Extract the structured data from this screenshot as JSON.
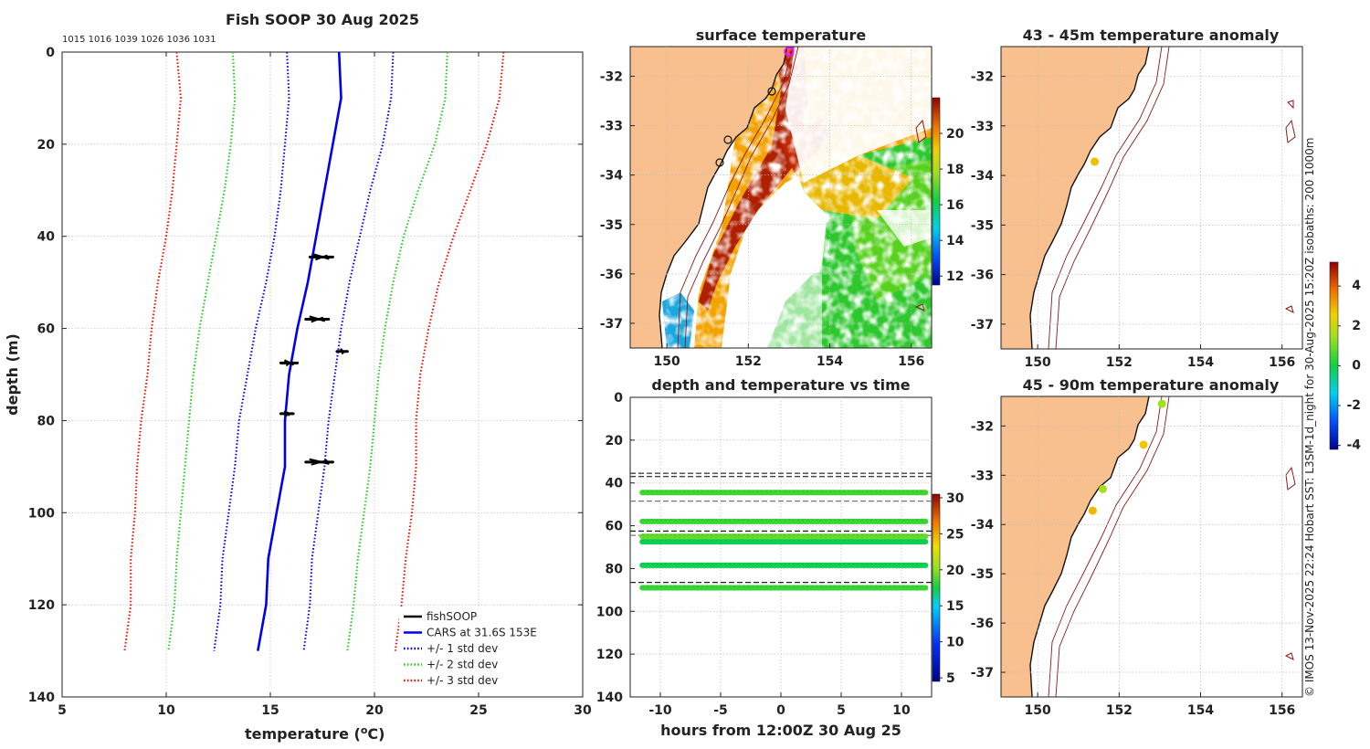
{
  "chart_data": [
    {
      "type": "line",
      "title": "Fish SOOP 30 Aug 2025",
      "xlabel": "temperature (",
      "xlabel_sup": "o",
      "xlabel_end": "C)",
      "ylabel": "depth (m)",
      "xlim": [
        5,
        30
      ],
      "ylim": [
        140,
        0
      ],
      "xticks": [
        "5",
        "10",
        "15",
        "20",
        "25",
        "30"
      ],
      "yticks": [
        "0",
        "20",
        "40",
        "60",
        "80",
        "100",
        "120",
        "140"
      ],
      "top_annotation": "1015 1016 1039 1026 1036 1031",
      "legend": [
        {
          "label": "fishSOOP",
          "color": "#000000",
          "style": "solid"
        },
        {
          "label": "CARS at 31.6S 153E",
          "color": "#0000ee",
          "style": "solid"
        },
        {
          "label": "+/- 1 std dev",
          "color": "#0000ee",
          "style": "dotted"
        },
        {
          "label": "+/- 2 std dev",
          "color": "#22cc22",
          "style": "dotted"
        },
        {
          "label": "+/- 3 std dev",
          "color": "#ee1100",
          "style": "dotted"
        }
      ],
      "depths": [
        0,
        10,
        20,
        30,
        40,
        50,
        60,
        70,
        80,
        90,
        100,
        110,
        120,
        130
      ],
      "cars_mean": [
        18.3,
        18.4,
        18.0,
        17.6,
        17.2,
        16.8,
        16.3,
        15.9,
        15.7,
        15.7,
        15.3,
        14.9,
        14.8,
        14.4
      ],
      "std1_low": [
        15.8,
        15.9,
        15.7,
        15.5,
        15.2,
        14.8,
        14.3,
        13.9,
        13.5,
        13.3,
        13.0,
        12.7,
        12.6,
        12.3
      ],
      "std1_high": [
        20.9,
        20.8,
        20.4,
        19.8,
        19.3,
        18.8,
        18.4,
        18.1,
        17.8,
        17.6,
        17.3,
        17.0,
        16.9,
        16.6
      ],
      "std2_low": [
        13.2,
        13.3,
        13.1,
        12.8,
        12.4,
        12.0,
        11.6,
        11.3,
        11.1,
        10.9,
        10.7,
        10.5,
        10.4,
        10.1
      ],
      "std2_high": [
        23.5,
        23.4,
        22.9,
        22.1,
        21.4,
        20.9,
        20.5,
        20.2,
        20.0,
        19.8,
        19.5,
        19.2,
        19.0,
        18.7
      ],
      "std3_low": [
        10.5,
        10.7,
        10.5,
        10.3,
        10.0,
        9.6,
        9.3,
        9.1,
        8.8,
        8.6,
        8.5,
        8.3,
        8.3,
        8.0
      ],
      "std3_high": [
        26.2,
        26.0,
        25.4,
        24.6,
        23.8,
        23.1,
        22.6,
        22.2,
        22.0,
        22.0,
        21.8,
        21.5,
        21.3,
        21.0
      ],
      "fishsoop_clusters": [
        {
          "depth": 44.5,
          "temp_min": 16.9,
          "temp_max": 18.0
        },
        {
          "depth": 58.0,
          "temp_min": 16.7,
          "temp_max": 17.8
        },
        {
          "depth": 65.0,
          "temp_min": 18.2,
          "temp_max": 18.7
        },
        {
          "depth": 67.5,
          "temp_min": 15.5,
          "temp_max": 16.3
        },
        {
          "depth": 78.5,
          "temp_min": 15.5,
          "temp_max": 16.1
        },
        {
          "depth": 89.0,
          "temp_min": 16.7,
          "temp_max": 18.0
        }
      ]
    },
    {
      "type": "heatmap",
      "title": "surface temperature",
      "xlim": [
        149.1,
        156.5
      ],
      "ylim": [
        -37.5,
        -31.4
      ],
      "xticks": [
        "150",
        "152",
        "154",
        "156"
      ],
      "yticks": [
        "-32",
        "-33",
        "-34",
        "-35",
        "-36",
        "-37"
      ],
      "colorbar": {
        "min": 11.5,
        "max": 22,
        "ticks": [
          "12",
          "14",
          "16",
          "18",
          "20"
        ]
      },
      "marker": {
        "lon": 153.0,
        "lat": -31.5
      }
    },
    {
      "type": "scatter",
      "title": "depth and temperature vs time",
      "xlabel": "hours from 12:00Z 30 Aug 25",
      "xlim": [
        -12.5,
        12.5
      ],
      "ylim": [
        140,
        0
      ],
      "xticks": [
        "-10",
        "-5",
        "0",
        "5",
        "10"
      ],
      "yticks": [
        "0",
        "20",
        "40",
        "60",
        "80",
        "100",
        "120",
        "140"
      ],
      "colorbar": {
        "min": 4.5,
        "max": 30.5,
        "ticks": [
          "5",
          "10",
          "15",
          "20",
          "25",
          "30"
        ]
      },
      "x_range": [
        -11.5,
        12.0
      ],
      "tracks": [
        {
          "depth": 44.5,
          "temp": 17.5
        },
        {
          "depth": 58.0,
          "temp": 17.3
        },
        {
          "depth": 65.0,
          "temp": 18.5
        },
        {
          "depth": 67.5,
          "temp": 15.9
        },
        {
          "depth": 78.5,
          "temp": 15.8
        },
        {
          "depth": 89.0,
          "temp": 17.3
        }
      ],
      "dashed_lines": [
        {
          "depth": 35.5,
          "color": "#444444"
        },
        {
          "depth": 37.0,
          "color": "#444444"
        },
        {
          "depth": 48.5,
          "color": "#777777"
        },
        {
          "depth": 62.5,
          "color": "#222222"
        },
        {
          "depth": 64.5,
          "color": "#777777"
        },
        {
          "depth": 86.5,
          "color": "#222222"
        }
      ]
    },
    {
      "type": "scatter",
      "title": "43 - 45m temperature anomaly",
      "xlim": [
        149.1,
        156.5
      ],
      "ylim": [
        -37.5,
        -31.4
      ],
      "xticks": [
        "150",
        "152",
        "154",
        "156"
      ],
      "yticks": [
        "-32",
        "-33",
        "-34",
        "-35",
        "-36",
        "-37"
      ],
      "points": [
        {
          "lon": 151.4,
          "lat": -33.72,
          "anomaly": 2.8
        }
      ]
    },
    {
      "type": "scatter",
      "title": "45 - 90m temperature anomaly",
      "xlim": [
        149.1,
        156.5
      ],
      "ylim": [
        -37.5,
        -31.4
      ],
      "xticks": [
        "150",
        "152",
        "154",
        "156"
      ],
      "yticks": [
        "-32",
        "-33",
        "-34",
        "-35",
        "-36",
        "-37"
      ],
      "colorbar": {
        "min": -4.2,
        "max": 5.2,
        "ticks": [
          "-4",
          "-2",
          "0",
          "2",
          "4"
        ]
      },
      "points": [
        {
          "lon": 153.05,
          "lat": -31.55,
          "anomaly": 1.5
        },
        {
          "lon": 152.6,
          "lat": -32.38,
          "anomaly": 2.7
        },
        {
          "lon": 151.6,
          "lat": -33.28,
          "anomaly": 1.5
        },
        {
          "lon": 151.35,
          "lat": -33.72,
          "anomaly": 2.9
        }
      ]
    }
  ],
  "credit": "© IMOS 13-Nov-2025 22:24 Hobart SST: L3SM-1d_night for 30-Aug-2025 15:20Z isobaths: 200  1000m"
}
